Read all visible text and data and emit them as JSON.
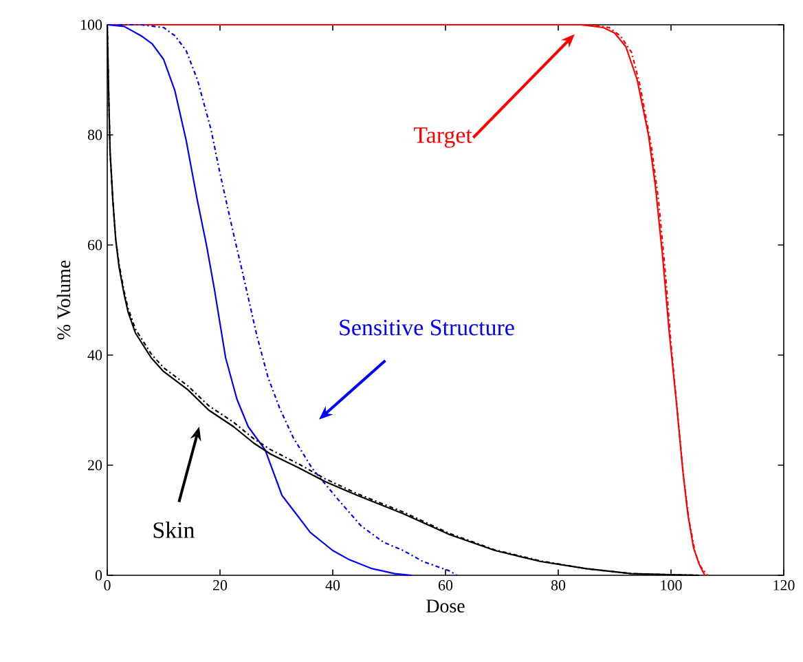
{
  "chart_data": {
    "type": "line",
    "xlabel": "Dose",
    "ylabel": "% Volume",
    "xlim": [
      0,
      120
    ],
    "ylim": [
      0,
      100
    ],
    "xticks": [
      0,
      20,
      40,
      60,
      80,
      100,
      120
    ],
    "yticks": [
      0,
      20,
      40,
      60,
      80,
      100
    ],
    "grid": false,
    "marker": "none",
    "series": [
      {
        "color": "#ff0000",
        "line_style": "solid",
        "x": [
          0,
          84,
          88,
          90,
          92,
          94,
          96,
          97.2,
          98.5,
          99.7,
          101,
          102.1,
          103,
          104,
          105,
          106
        ],
        "values": [
          100,
          100,
          99.5,
          98.5,
          96,
          90,
          80,
          71,
          58,
          44,
          31,
          19,
          11,
          5,
          2,
          0
        ]
      },
      {
        "color": "#ff0000",
        "line_style": "dashdot",
        "x": [
          0,
          86,
          89,
          91,
          93,
          94.5,
          96.5,
          97.8,
          99,
          100,
          101.2,
          102.2,
          103.2,
          104.3,
          105.3,
          106.5
        ],
        "values": [
          100,
          100,
          99.5,
          98,
          95,
          89,
          78,
          68,
          55,
          42,
          29,
          18,
          10,
          4,
          1.5,
          0
        ]
      },
      {
        "color": "#0000ff",
        "line_style": "solid",
        "x": [
          0,
          3,
          6,
          8,
          10,
          12,
          14,
          16,
          17.6,
          19,
          21,
          23,
          25,
          28,
          31,
          34,
          36,
          40,
          43,
          47,
          51,
          54
        ],
        "values": [
          100,
          99.7,
          98,
          96.5,
          93.7,
          88,
          79,
          68,
          60,
          52,
          39.5,
          32,
          27,
          22.8,
          14.5,
          10.5,
          7.8,
          4.5,
          2.8,
          1.2,
          0.3,
          0
        ]
      },
      {
        "color": "#0000ff",
        "line_style": "dashdot",
        "x": [
          0,
          6,
          10,
          12,
          14,
          16,
          18.4,
          20,
          22.4,
          24,
          26.5,
          28.5,
          30.6,
          33,
          36.3,
          41,
          45,
          49,
          52.5,
          56,
          60.7,
          62
        ],
        "values": [
          100,
          100,
          99.5,
          98,
          95.3,
          90,
          81,
          73,
          62,
          55,
          43.7,
          36,
          30.3,
          25,
          19.5,
          13.7,
          9,
          6,
          4.5,
          2.5,
          0.8,
          0
        ]
      },
      {
        "color": "#000000",
        "line_style": "solid",
        "x": [
          0,
          0.2,
          0.5,
          1,
          1.5,
          2.1,
          3,
          3.7,
          5,
          7.8,
          10,
          14.3,
          18,
          22.4,
          26,
          29,
          34,
          38.7,
          44.4,
          52.5,
          60.7,
          68.8,
          76.9,
          85,
          93,
          100,
          105
        ],
        "values": [
          100,
          90,
          77,
          68,
          61,
          56,
          51,
          47.8,
          44,
          39.5,
          37,
          33.7,
          30,
          27,
          24,
          22,
          19.5,
          17,
          14.5,
          11.2,
          7.4,
          4.5,
          2.5,
          1.2,
          0.3,
          0.1,
          0
        ]
      },
      {
        "color": "#000000",
        "line_style": "dashdot",
        "x": [
          0,
          0.2,
          0.5,
          1,
          1.5,
          2.1,
          3,
          3.7,
          5,
          7.8,
          10,
          14.3,
          18,
          22.4,
          26,
          29,
          34,
          38.7,
          44.4,
          52.5,
          60.7,
          68.8,
          76.9,
          85,
          93,
          100,
          105
        ],
        "values": [
          100,
          90,
          77,
          68,
          61,
          56.5,
          51.5,
          48.5,
          44.7,
          40.2,
          37.7,
          34.4,
          30.8,
          27.8,
          24.8,
          22.8,
          20.2,
          17.5,
          14.8,
          11.5,
          7.6,
          4.6,
          2.6,
          1.2,
          0.3,
          0.1,
          0
        ]
      }
    ],
    "annotations": [
      "Target",
      "Sensitive Structure",
      "Skin"
    ]
  }
}
